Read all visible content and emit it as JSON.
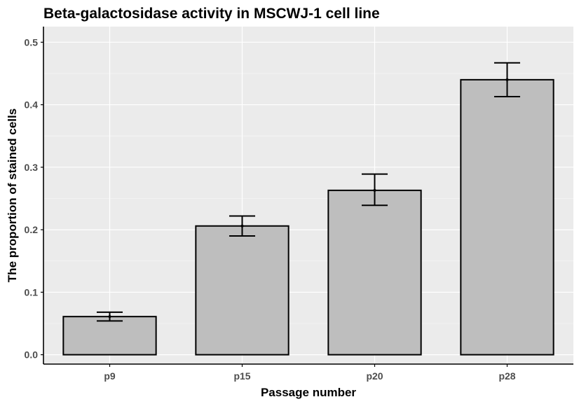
{
  "chart_data": {
    "type": "bar",
    "title": "Beta-galactosidase activity in MSCWJ-1 cell line",
    "xlabel": "Passage number",
    "ylabel": "The proportion of stained cells",
    "categories": [
      "p9",
      "p15",
      "p20",
      "p28"
    ],
    "values": [
      0.061,
      0.206,
      0.263,
      0.44
    ],
    "error_low": [
      0.054,
      0.19,
      0.239,
      0.413
    ],
    "error_high": [
      0.068,
      0.222,
      0.289,
      0.467
    ],
    "ylim": [
      -0.015,
      0.525
    ],
    "yticks": [
      0.0,
      0.1,
      0.2,
      0.3,
      0.4,
      0.5
    ],
    "ytick_labels": [
      "0.0",
      "0.1",
      "0.2",
      "0.3",
      "0.4",
      "0.5"
    ],
    "grid": true,
    "legend": "none",
    "colors": {
      "panel_background": "#ebebeb",
      "grid_major": "#ffffff",
      "grid_minor": "#f5f5f5",
      "bar_fill": "#bebebe",
      "bar_outline": "#000000",
      "errorbar": "#000000",
      "axis_line": "#000000",
      "tick_label": "#4d4d4d"
    }
  }
}
